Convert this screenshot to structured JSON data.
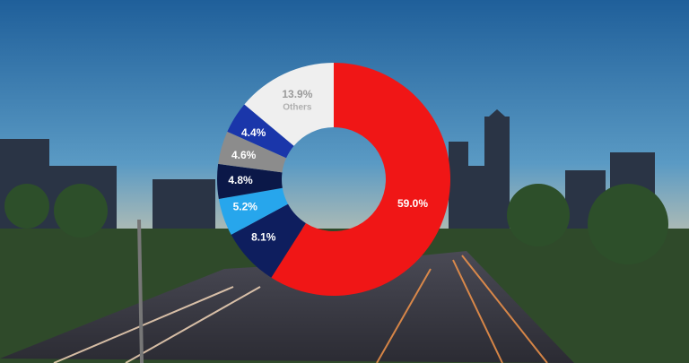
{
  "chart_data": {
    "type": "donut",
    "categories": [
      null,
      null,
      null,
      null,
      null,
      null,
      "Others"
    ],
    "values": [
      59.0,
      8.1,
      5.2,
      4.8,
      4.6,
      4.4,
      13.9
    ],
    "value_labels": [
      "59.0%",
      "8.1%",
      "5.2%",
      "4.8%",
      "4.6%",
      "4.4%",
      "13.9%"
    ],
    "colors": [
      "#f01616",
      "#0e1e5e",
      "#27a6ec",
      "#0b1848",
      "#8c8c8c",
      "#1a36aa",
      "#efefef"
    ]
  }
}
